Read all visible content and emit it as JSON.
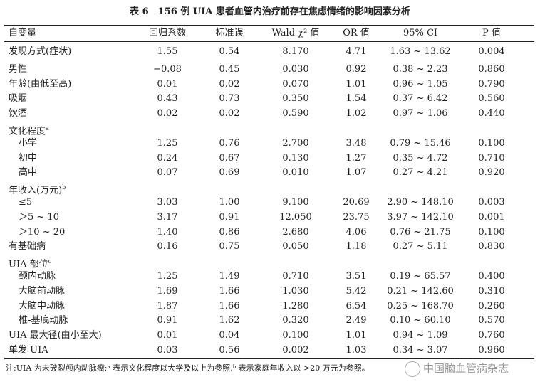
{
  "title": "表 6　156 例 UIA 患者血管内治疗前存在焦虑情绪的影响因素分析",
  "table": {
    "header": [
      "自变量",
      "回归系数",
      "标准误",
      "Wald χ² 值",
      "OR 值",
      "95% CI",
      "P 值"
    ],
    "rows": [
      {
        "label": "发现方式(症状)",
        "cells": [
          "1.55",
          "0.54",
          "8.170",
          "4.71",
          "1.63 ~ 13.62",
          "0.004"
        ]
      },
      {
        "label": "男性",
        "cells": [
          "−0.08",
          "0.45",
          "0.030",
          "0.92",
          "0.38 ~ 2.23",
          "0.860"
        ]
      },
      {
        "label": "年龄(由低至高)",
        "cells": [
          "0.01",
          "0.02",
          "0.070",
          "1.01",
          "0.96 ~ 1.05",
          "0.790"
        ]
      },
      {
        "label": "吸烟",
        "cells": [
          "0.43",
          "0.73",
          "0.350",
          "1.54",
          "0.37 ~ 6.42",
          "0.560"
        ]
      },
      {
        "label": "饮酒",
        "cells": [
          "0.02",
          "0.02",
          "0.590",
          "1.02",
          "0.97 ~ 1.06",
          "0.440"
        ]
      },
      {
        "label": "文化程度",
        "sup": "a",
        "items": [
          {
            "label": "小学",
            "cells": [
              "1.25",
              "0.76",
              "2.700",
              "3.48",
              "0.79 ~ 15.46",
              "0.100"
            ]
          },
          {
            "label": "初中",
            "cells": [
              "0.24",
              "0.67",
              "0.130",
              "1.27",
              "0.35 ~ 4.72",
              "0.710"
            ]
          },
          {
            "label": "高中",
            "cells": [
              "0.07",
              "0.69",
              "0.010",
              "1.07",
              "0.27 ~ 4.21",
              "0.920"
            ]
          }
        ]
      },
      {
        "label": "年收入(万元)",
        "sup": "b",
        "items": [
          {
            "label": "≤5",
            "cells": [
              "3.03",
              "1.00",
              "9.100",
              "20.69",
              "2.90 ~ 148.10",
              "0.003"
            ]
          },
          {
            "label": "＞5 ~ 10",
            "cells": [
              "3.17",
              "0.91",
              "12.050",
              "23.75",
              "3.97 ~ 142.10",
              "0.001"
            ]
          },
          {
            "label": "＞10 ~ 20",
            "cells": [
              "1.40",
              "0.86",
              "2.680",
              "4.06",
              "0.76 ~ 21.75",
              "0.100"
            ]
          }
        ]
      },
      {
        "label": "有基础病",
        "cells": [
          "0.16",
          "0.75",
          "0.050",
          "1.18",
          "0.27 ~ 5.11",
          "0.830"
        ]
      },
      {
        "label": "UIA 部位",
        "sup": "c",
        "items": [
          {
            "label": "颈内动脉",
            "cells": [
              "1.25",
              "1.49",
              "0.710",
              "3.51",
              "0.19 ~ 65.57",
              "0.400"
            ]
          },
          {
            "label": "大脑前动脉",
            "cells": [
              "1.69",
              "1.66",
              "1.030",
              "5.42",
              "0.21 ~ 142.60",
              "0.310"
            ]
          },
          {
            "label": "大脑中动脉",
            "cells": [
              "1.87",
              "1.66",
              "1.280",
              "6.54",
              "0.25 ~ 168.70",
              "0.260"
            ]
          },
          {
            "label": "椎-基底动脉",
            "cells": [
              "0.91",
              "1.62",
              "0.320",
              "2.49",
              "0.10 ~ 60.10",
              "0.570"
            ]
          }
        ]
      },
      {
        "label": "UIA 最大径(由小至大)",
        "cells": [
          "0.01",
          "0.04",
          "0.100",
          "1.01",
          "0.94 ~ 1.09",
          "0.760"
        ]
      },
      {
        "label": "单发 UIA",
        "cells": [
          "0.03",
          "0.56",
          "0.002",
          "1.03",
          "0.34 ~ 3.07",
          "0.960"
        ]
      }
    ]
  },
  "note": "注:UIA 为未破裂颅内动脉瘤;ᵃ 表示文化程度以大学及以上为参照,ᵇ 表示家庭年收入以 >20 万元为参照。",
  "watermark": "中国脑血管病杂志"
}
